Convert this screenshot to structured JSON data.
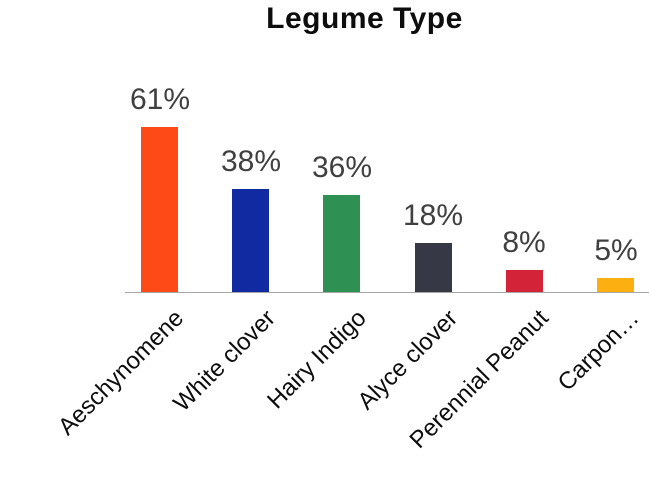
{
  "chart_data": {
    "type": "bar",
    "title": "Legume Type",
    "categories": [
      "Aeschynomene",
      "White clover",
      "Hairy Indigo",
      "Alyce clover",
      "Perennial Peanut",
      "Carpon…"
    ],
    "values": [
      61,
      38,
      36,
      18,
      8,
      5
    ],
    "data_labels": [
      "61%",
      "38%",
      "36%",
      "18%",
      "8%",
      "5%"
    ],
    "bar_colors": [
      "#FD4A16",
      "#1129A1",
      "#2E9052",
      "#363945",
      "#D22339",
      "#FCAF10"
    ],
    "xlabel": "",
    "ylabel": "",
    "ylim": [
      0,
      70
    ],
    "grid": false,
    "legend": "none",
    "value_label_color": "#404040",
    "category_label_color": "#0d0d0d",
    "axis_line_color": "#a6a6a6",
    "title_color": "#0d0d0d",
    "category_label_rotation_deg": 45
  }
}
